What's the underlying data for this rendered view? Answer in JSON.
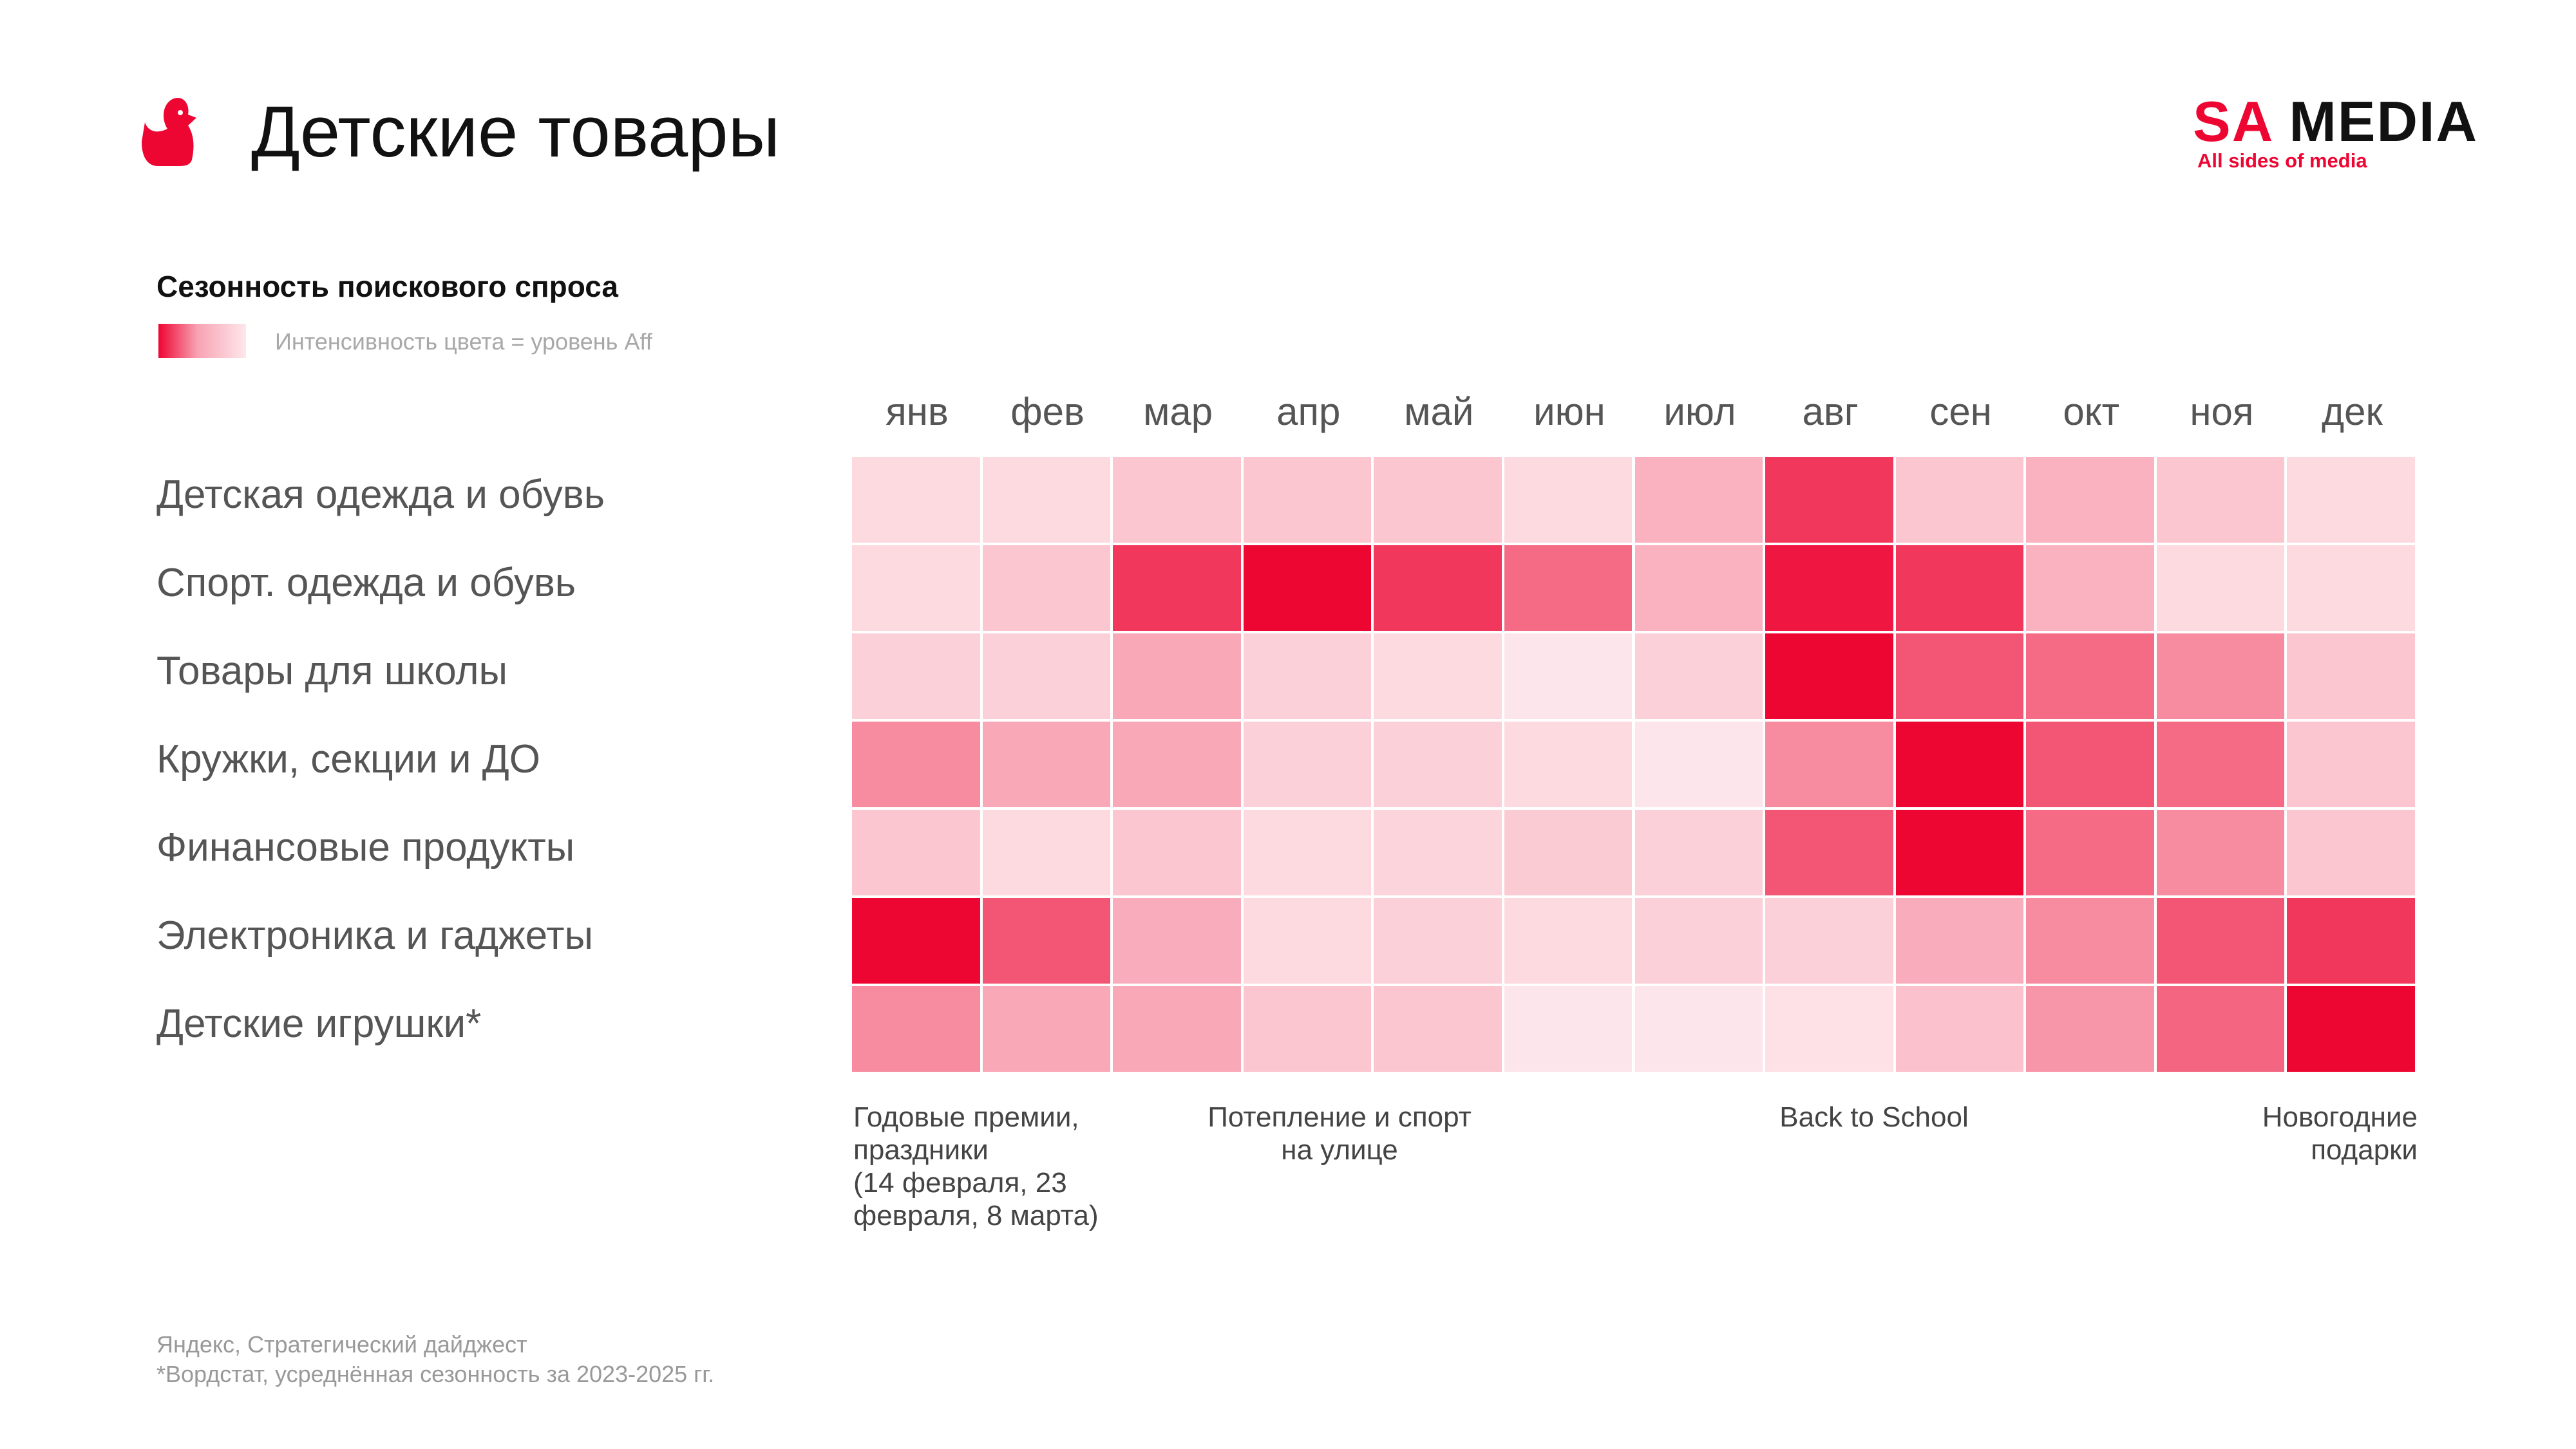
{
  "header": {
    "title": "Детские товары",
    "icon": "duck-icon",
    "logo_text_accent": "SA",
    "logo_text_main": "MEDIA",
    "logo_tagline": "All sides of media"
  },
  "colors": {
    "accent": "#EE0633",
    "text": "#111111",
    "muted": "#999999"
  },
  "chart_data": {
    "type": "heatmap",
    "title": "Сезонность поискового спроса",
    "legend": "Интенсивность цвета = уровень Aff",
    "color_scale": [
      "#FFFFFF",
      "#EE0633"
    ],
    "categories": [
      "янв",
      "фев",
      "мар",
      "апр",
      "май",
      "июн",
      "июл",
      "авг",
      "сен",
      "окт",
      "ноя",
      "дек"
    ],
    "rows": [
      {
        "name": "Детская одежда и обувь",
        "values": [
          0.15,
          0.15,
          0.23,
          0.23,
          0.23,
          0.15,
          0.31,
          0.8,
          0.23,
          0.31,
          0.23,
          0.15
        ]
      },
      {
        "name": "Спорт. одежда и обувь",
        "values": [
          0.15,
          0.23,
          0.8,
          1,
          0.8,
          0.6,
          0.31,
          0.93,
          0.8,
          0.31,
          0.15,
          0.15
        ]
      },
      {
        "name": "Товары для школы",
        "values": [
          0.19,
          0.19,
          0.35,
          0.19,
          0.15,
          0.1,
          0.19,
          1,
          0.68,
          0.6,
          0.46,
          0.23
        ]
      },
      {
        "name": "Кружки, секции и ДО",
        "values": [
          0.46,
          0.35,
          0.35,
          0.19,
          0.19,
          0.15,
          0.1,
          0.46,
          1,
          0.68,
          0.6,
          0.23
        ]
      },
      {
        "name": "Финансовые продукты",
        "values": [
          0.23,
          0.15,
          0.23,
          0.15,
          0.17,
          0.21,
          0.19,
          0.68,
          1,
          0.6,
          0.46,
          0.23
        ]
      },
      {
        "name": "Электроника и гаджеты",
        "values": [
          1,
          0.68,
          0.33,
          0.15,
          0.19,
          0.15,
          0.19,
          0.19,
          0.33,
          0.46,
          0.68,
          0.8
        ]
      },
      {
        "name": "Детские игрушки*",
        "values": [
          0.46,
          0.35,
          0.35,
          0.23,
          0.23,
          0.1,
          0.1,
          0.12,
          0.25,
          0.42,
          0.62,
          1
        ]
      }
    ],
    "annotations": [
      {
        "text": "Годовые премии,\nпраздники\n(14 февраля, 23\nфевраля, 8 марта)"
      },
      {
        "text": "Потепление и спорт\nна улице"
      },
      {
        "text": "Back to School"
      },
      {
        "text": "Новогодние\nподарки"
      }
    ]
  },
  "footer": {
    "source": "Яндекс, Стратегический дайджест",
    "note": "*Вордстат, усреднённая сезонность за 2023-2025 гг."
  }
}
